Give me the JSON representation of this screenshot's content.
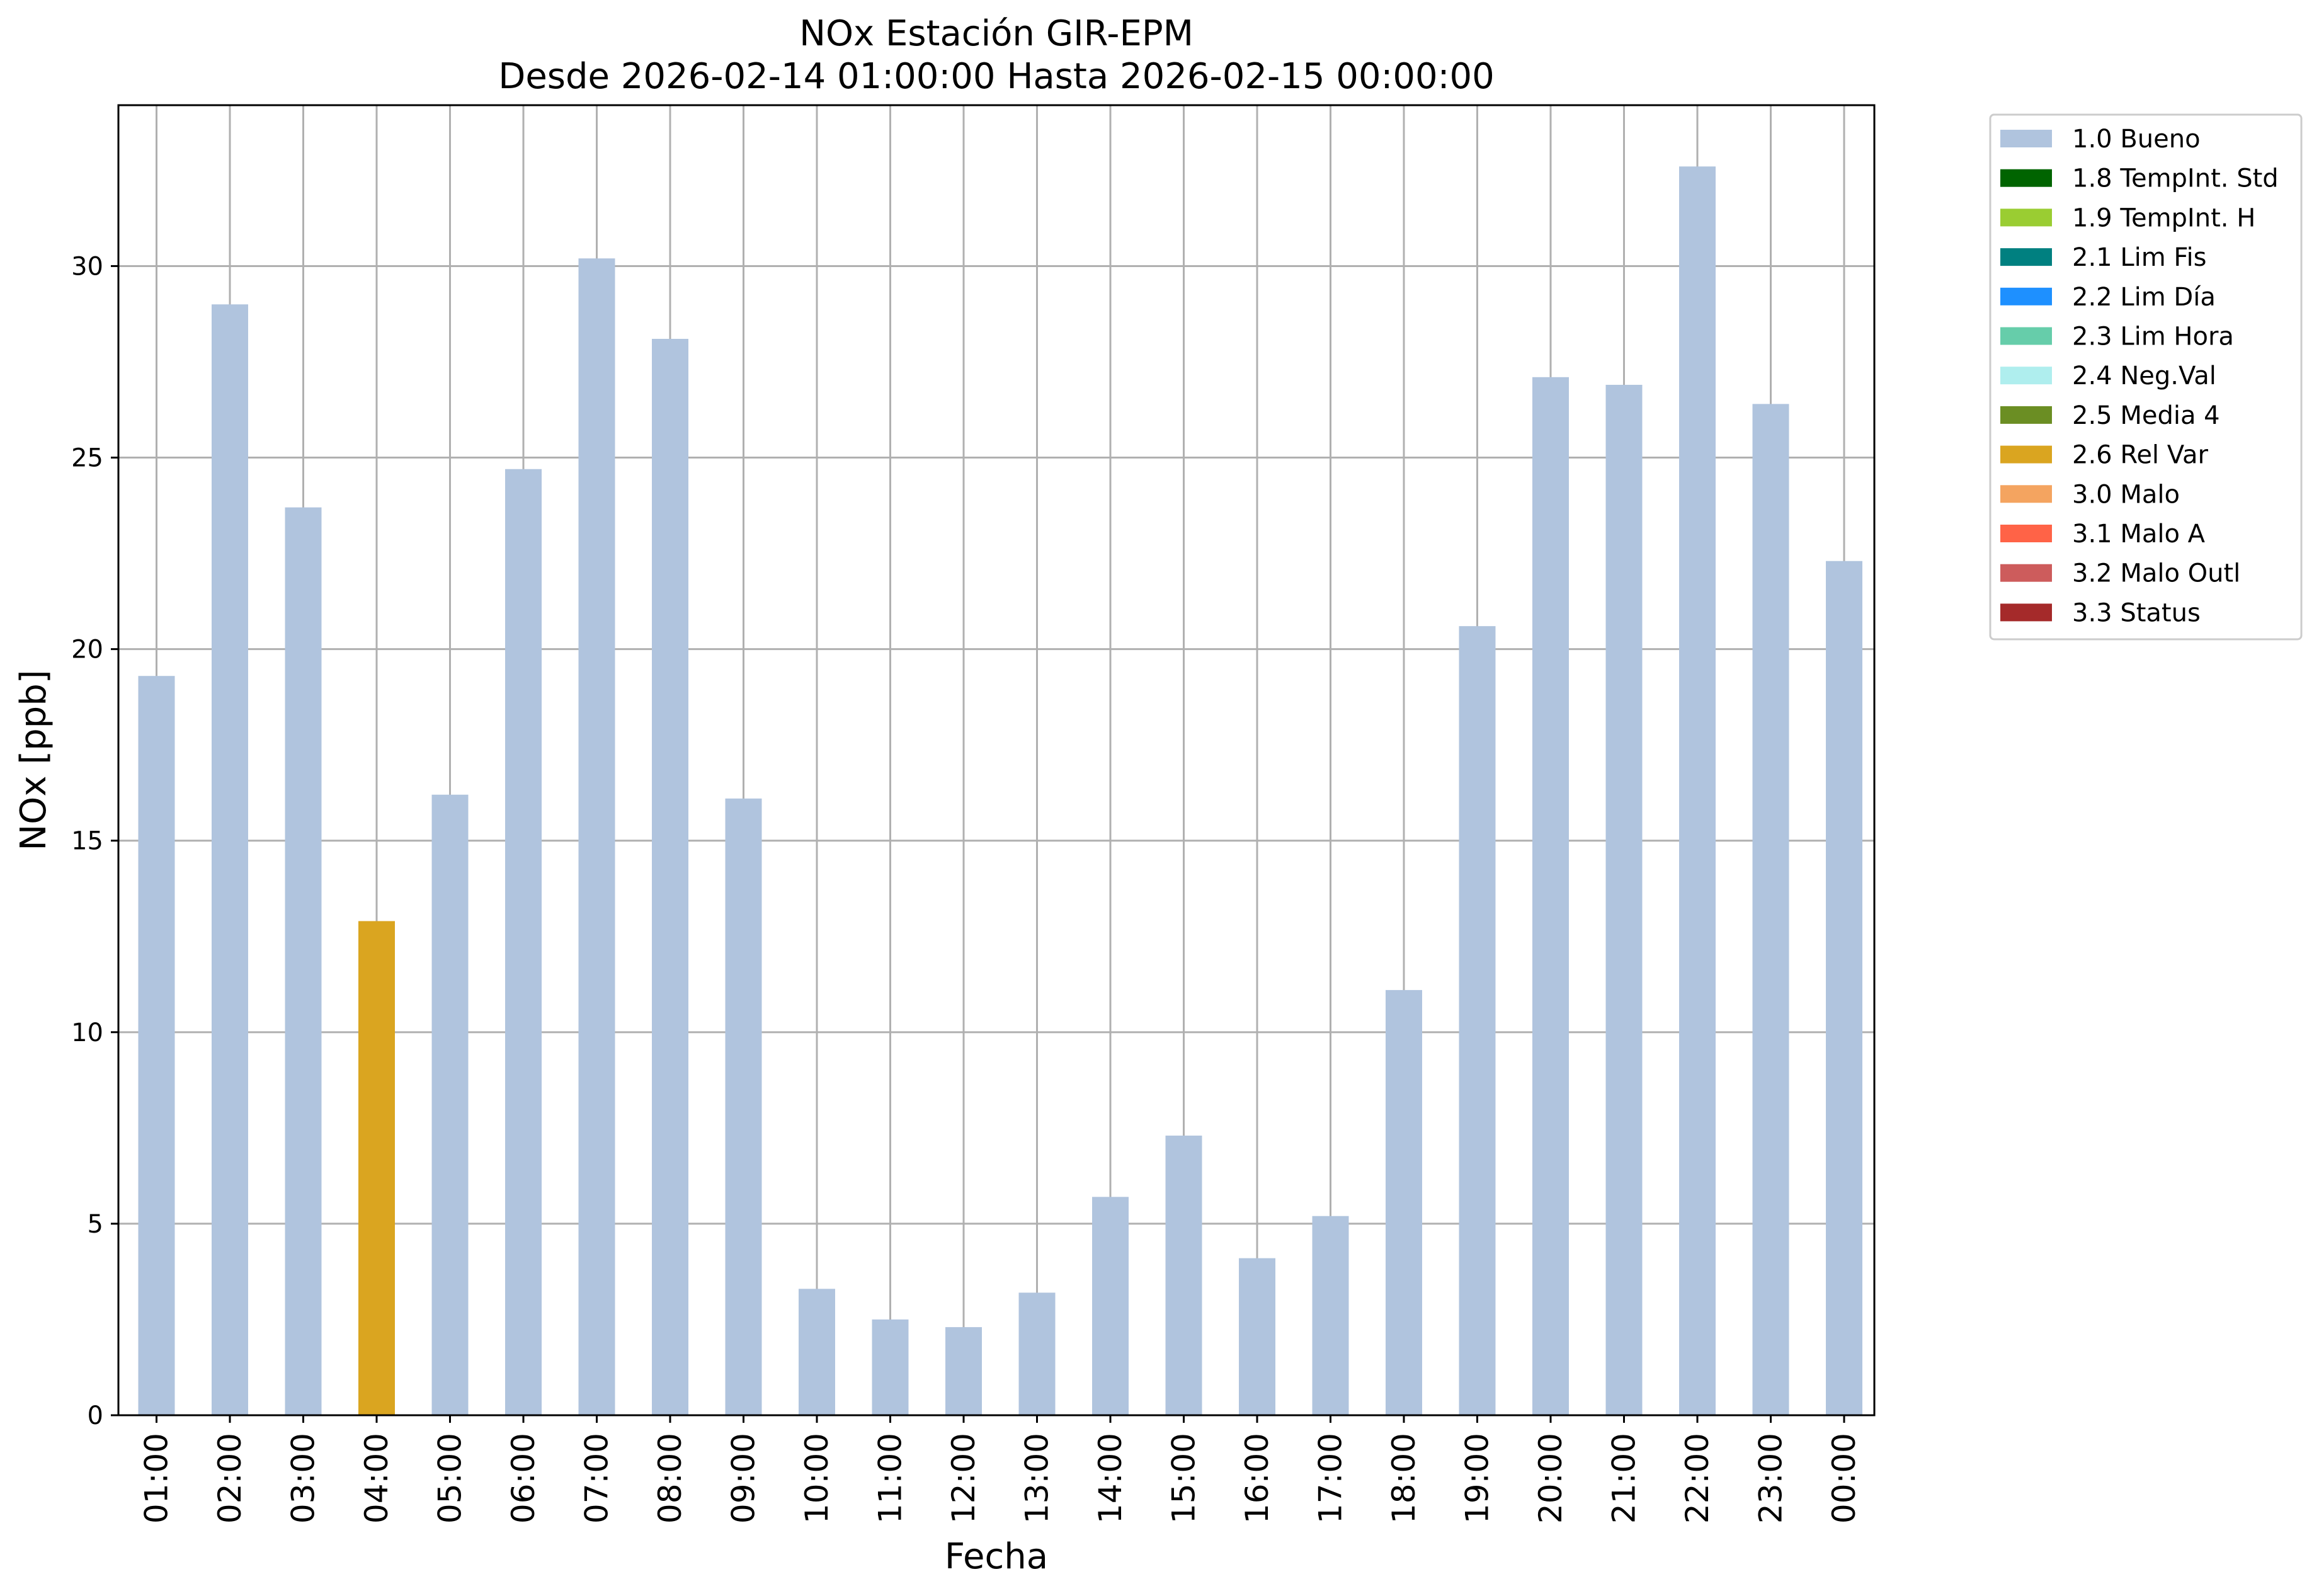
{
  "chart_data": {
    "type": "bar",
    "title": "NOx Estación GIR-EPM",
    "subtitle": "Desde 2026-02-14 01:00:00 Hasta 2026-02-15 00:00:00",
    "xlabel": "Fecha",
    "ylabel": "NOx [ppb]",
    "ylim": [
      0,
      34.2
    ],
    "yticks": [
      0,
      5,
      10,
      15,
      20,
      25,
      30
    ],
    "grid": true,
    "legend_position": "outside-right",
    "categories": [
      "01:00",
      "02:00",
      "03:00",
      "04:00",
      "05:00",
      "06:00",
      "07:00",
      "08:00",
      "09:00",
      "10:00",
      "11:00",
      "12:00",
      "13:00",
      "14:00",
      "15:00",
      "16:00",
      "17:00",
      "18:00",
      "19:00",
      "20:00",
      "21:00",
      "22:00",
      "23:00",
      "00:00"
    ],
    "values": [
      19.3,
      29.0,
      23.7,
      12.9,
      16.2,
      24.7,
      30.2,
      28.1,
      16.1,
      3.3,
      2.5,
      2.3,
      3.2,
      5.7,
      7.3,
      4.1,
      5.2,
      11.1,
      20.6,
      27.1,
      26.9,
      32.6,
      26.4,
      22.3
    ],
    "flags": [
      "1.0 Bueno",
      "1.0 Bueno",
      "1.0 Bueno",
      "2.6 Rel Var",
      "1.0 Bueno",
      "1.0 Bueno",
      "1.0 Bueno",
      "1.0 Bueno",
      "1.0 Bueno",
      "1.0 Bueno",
      "1.0 Bueno",
      "1.0 Bueno",
      "1.0 Bueno",
      "1.0 Bueno",
      "1.0 Bueno",
      "1.0 Bueno",
      "1.0 Bueno",
      "1.0 Bueno",
      "1.0 Bueno",
      "1.0 Bueno",
      "1.0 Bueno",
      "1.0 Bueno",
      "1.0 Bueno",
      "1.0 Bueno"
    ],
    "legend": [
      {
        "label": "1.0 Bueno",
        "color": "#b0c4de"
      },
      {
        "label": "1.8 TempInt. Std",
        "color": "#006400"
      },
      {
        "label": "1.9 TempInt. H",
        "color": "#9acd32"
      },
      {
        "label": "2.1 Lim Fis",
        "color": "#008080"
      },
      {
        "label": "2.2 Lim Día",
        "color": "#1e90ff"
      },
      {
        "label": "2.3 Lim Hora",
        "color": "#66cdaa"
      },
      {
        "label": "2.4 Neg.Val",
        "color": "#afeeee"
      },
      {
        "label": "2.5 Media 4",
        "color": "#6b8e23"
      },
      {
        "label": "2.6 Rel Var",
        "color": "#daa520"
      },
      {
        "label": "3.0 Malo",
        "color": "#f4a460"
      },
      {
        "label": "3.1 Malo A",
        "color": "#ff6347"
      },
      {
        "label": "3.2 Malo Outl",
        "color": "#cd5c5c"
      },
      {
        "label": "3.3 Status",
        "color": "#a52a2a"
      }
    ]
  }
}
